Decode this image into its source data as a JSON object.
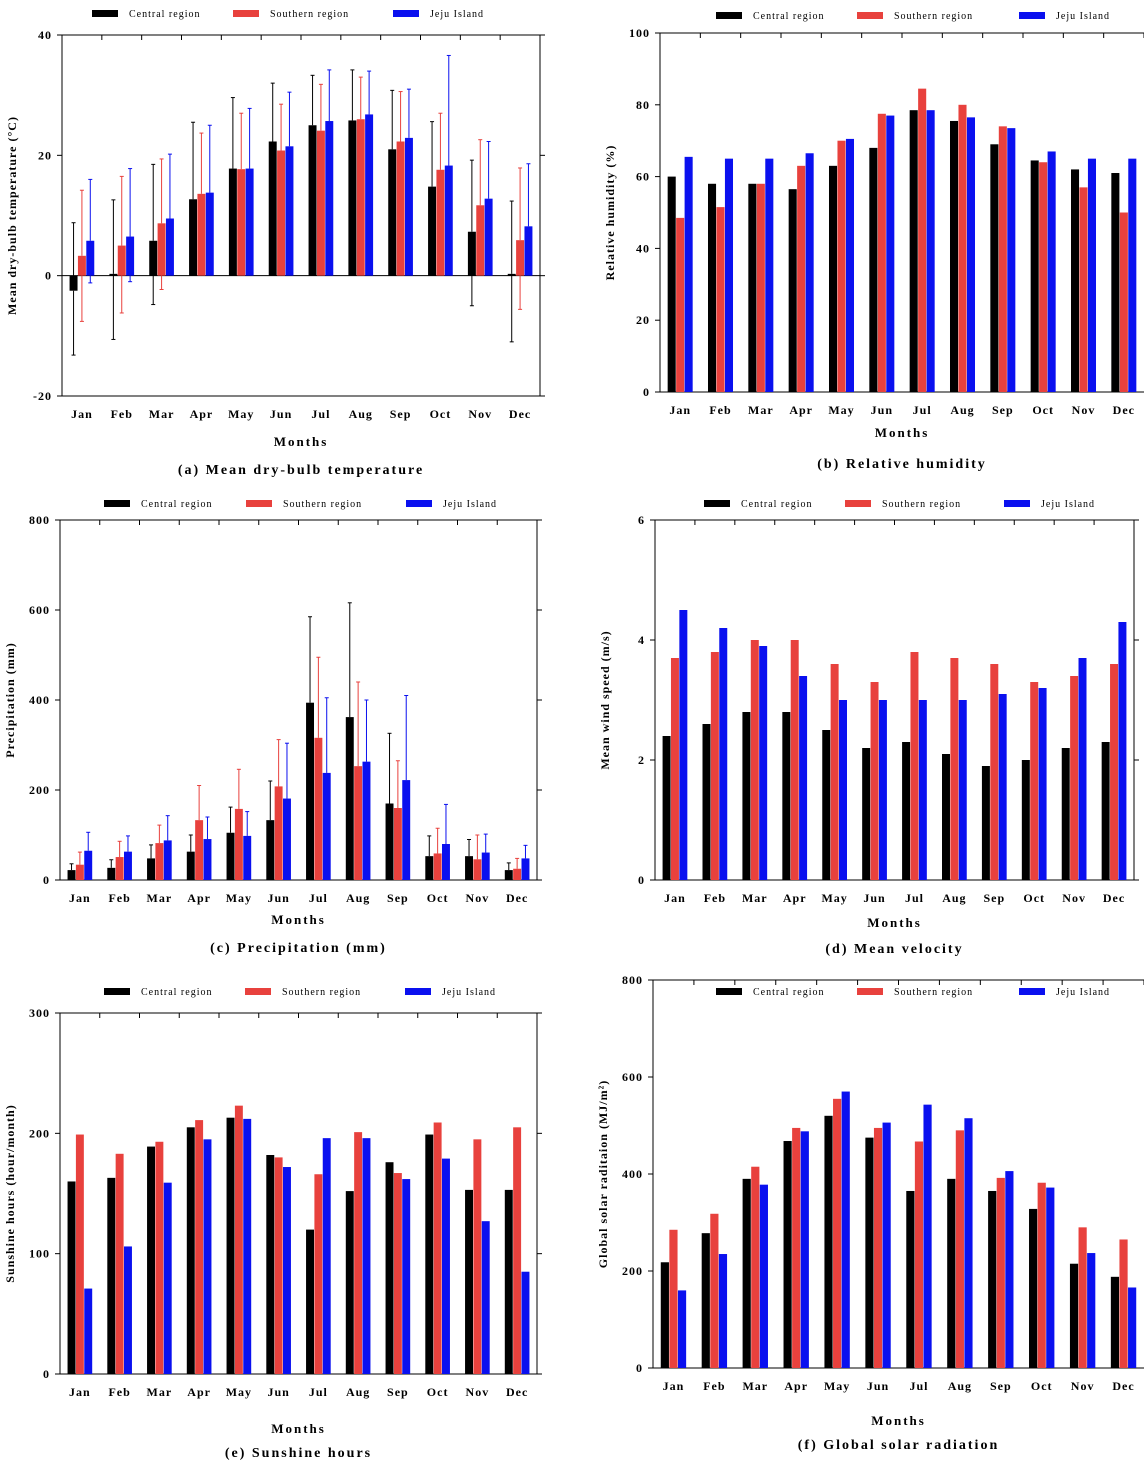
{
  "colors": {
    "central": "#000000",
    "southern": "#e8413d",
    "jeju": "#0a10ef"
  },
  "legend": [
    "Central region",
    "Southern region",
    "Jeju Island"
  ],
  "months": [
    "Jan",
    "Feb",
    "Mar",
    "Apr",
    "May",
    "Jun",
    "Jul",
    "Aug",
    "Sep",
    "Oct",
    "Nov",
    "Dec"
  ],
  "chart_data": [
    {
      "id": "a",
      "type": "bar",
      "caption": "(a) Mean dry-bulb temperature",
      "ylabel": "Mean dry-bulb temperature (°C)",
      "xlabel": "Months",
      "ylim": [
        -20,
        40
      ],
      "yticks": [
        -20,
        0,
        20,
        40
      ],
      "error_bars": true,
      "series": [
        {
          "name": "Central region",
          "values": [
            -2.5,
            0.3,
            5.8,
            12.7,
            17.8,
            22.3,
            25.0,
            25.8,
            21.0,
            14.8,
            7.3,
            0.3
          ],
          "err_hi": [
            8.8,
            12.6,
            18.5,
            25.5,
            29.6,
            32.0,
            33.3,
            34.2,
            30.8,
            25.6,
            19.2,
            12.4
          ],
          "err_lo": [
            -13.2,
            -10.6,
            -4.8,
            null,
            null,
            null,
            null,
            null,
            null,
            null,
            -5.0,
            -11.0
          ]
        },
        {
          "name": "Southern region",
          "values": [
            3.3,
            5.0,
            8.7,
            13.6,
            17.7,
            20.8,
            24.1,
            26.0,
            22.3,
            17.6,
            11.7,
            5.9
          ],
          "err_hi": [
            14.2,
            16.5,
            19.4,
            23.7,
            27.0,
            28.5,
            31.8,
            33.0,
            30.6,
            27.0,
            22.6,
            17.9
          ],
          "err_lo": [
            -7.6,
            -6.2,
            -2.3,
            null,
            null,
            null,
            null,
            null,
            null,
            null,
            null,
            -5.6
          ]
        },
        {
          "name": "Jeju Island",
          "values": [
            5.8,
            6.5,
            9.5,
            13.8,
            17.8,
            21.5,
            25.7,
            26.8,
            22.9,
            18.3,
            12.8,
            8.2
          ],
          "err_hi": [
            16.0,
            17.8,
            20.2,
            25.0,
            27.8,
            30.5,
            34.2,
            34.0,
            31.0,
            36.6,
            22.3,
            18.6
          ],
          "err_lo": [
            -1.2,
            -1.0,
            null,
            null,
            null,
            null,
            null,
            null,
            null,
            null,
            null,
            null
          ]
        }
      ]
    },
    {
      "id": "b",
      "type": "bar",
      "caption": "(b) Relative humidity",
      "ylabel": "Relative humidity (%)",
      "xlabel": "Months",
      "ylim": [
        0,
        100
      ],
      "yticks": [
        0,
        20,
        40,
        60,
        80,
        100
      ],
      "series": [
        {
          "name": "Central region",
          "values": [
            60,
            58,
            58,
            56.5,
            63,
            68,
            78.5,
            75.5,
            69,
            64.5,
            62,
            61
          ]
        },
        {
          "name": "Southern region",
          "values": [
            48.5,
            51.5,
            58,
            63,
            70,
            77.5,
            84.5,
            80,
            74,
            64,
            57,
            50
          ]
        },
        {
          "name": "Jeju Island",
          "values": [
            65.5,
            65,
            65,
            66.5,
            70.5,
            77,
            78.5,
            76.5,
            73.5,
            67,
            65,
            65
          ]
        }
      ]
    },
    {
      "id": "c",
      "type": "bar",
      "caption": "(c) Precipitation (mm)",
      "ylabel": "Precipitation (mm)",
      "xlabel": "Months",
      "ylim": [
        0,
        800
      ],
      "yticks": [
        0,
        200,
        400,
        600,
        800
      ],
      "error_bars": true,
      "series": [
        {
          "name": "Central region",
          "values": [
            22,
            27,
            48,
            63,
            105,
            133,
            394,
            362,
            170,
            53,
            53,
            22
          ],
          "err_hi": [
            36,
            45,
            78,
            100,
            162,
            220,
            585,
            616,
            326,
            98,
            90,
            38
          ]
        },
        {
          "name": "Southern region",
          "values": [
            34,
            51,
            82,
            133,
            158,
            208,
            316,
            253,
            160,
            59,
            46,
            25
          ],
          "err_hi": [
            62,
            86,
            122,
            210,
            246,
            312,
            495,
            440,
            265,
            115,
            100,
            48
          ]
        },
        {
          "name": "Jeju Island",
          "values": [
            65,
            63,
            88,
            91,
            98,
            181,
            238,
            263,
            222,
            80,
            61,
            48
          ],
          "err_hi": [
            106,
            98,
            143,
            140,
            152,
            304,
            405,
            400,
            410,
            168,
            102,
            77
          ]
        }
      ]
    },
    {
      "id": "d",
      "type": "bar",
      "caption": "(d) Mean velocity",
      "ylabel": "Mean wind speed (m/s)",
      "xlabel": "Months",
      "ylim": [
        0,
        6
      ],
      "yticks": [
        0,
        2,
        4,
        6
      ],
      "series": [
        {
          "name": "Central region",
          "values": [
            2.4,
            2.6,
            2.8,
            2.8,
            2.5,
            2.2,
            2.3,
            2.1,
            1.9,
            2.0,
            2.2,
            2.3
          ]
        },
        {
          "name": "Southern region",
          "values": [
            3.7,
            3.8,
            4.0,
            4.0,
            3.6,
            3.3,
            3.8,
            3.7,
            3.6,
            3.3,
            3.4,
            3.6
          ]
        },
        {
          "name": "Jeju Island",
          "values": [
            4.5,
            4.2,
            3.9,
            3.4,
            3.0,
            3.0,
            3.0,
            3.0,
            3.1,
            3.2,
            3.7,
            4.3
          ]
        }
      ]
    },
    {
      "id": "e",
      "type": "bar",
      "caption": "(e) Sunshine hours",
      "ylabel": "Sunshine hours (hour/month)",
      "xlabel": "Months",
      "ylim": [
        0,
        300
      ],
      "yticks": [
        0,
        100,
        200,
        300
      ],
      "series": [
        {
          "name": "Central region",
          "values": [
            160,
            163,
            189,
            205,
            213,
            182,
            120,
            152,
            176,
            199,
            153,
            153
          ]
        },
        {
          "name": "Southern region",
          "values": [
            199,
            183,
            193,
            211,
            223,
            180,
            166,
            201,
            167,
            209,
            195,
            205
          ]
        },
        {
          "name": "Jeju Island",
          "values": [
            71,
            106,
            159,
            195,
            212,
            172,
            196,
            196,
            162,
            179,
            127,
            85
          ]
        }
      ]
    },
    {
      "id": "f",
      "type": "bar",
      "caption": "(f) Global solar radiation",
      "ylabel": "Global solar raditaion (MJ/m²)",
      "xlabel": "Months",
      "ylim": [
        0,
        800
      ],
      "yticks": [
        0,
        200,
        400,
        600,
        800
      ],
      "series": [
        {
          "name": "Central region",
          "values": [
            218,
            278,
            390,
            468,
            520,
            475,
            365,
            390,
            365,
            328,
            215,
            188
          ]
        },
        {
          "name": "Southern region",
          "values": [
            285,
            318,
            415,
            495,
            555,
            495,
            467,
            490,
            392,
            382,
            290,
            265
          ]
        },
        {
          "name": "Jeju Island",
          "values": [
            160,
            235,
            378,
            488,
            570,
            506,
            543,
            515,
            406,
            372,
            237,
            166
          ]
        }
      ]
    }
  ]
}
